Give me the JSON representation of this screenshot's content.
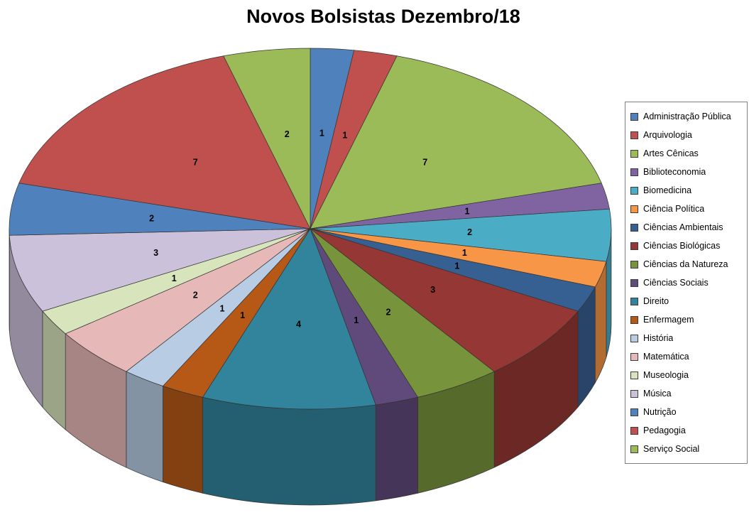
{
  "title": "Novos Bolsistas Dezembro/18",
  "chart_data": {
    "type": "pie",
    "style": "3d",
    "title": "Novos Bolsistas Dezembro/18",
    "legend_position": "right",
    "data_labels": "values",
    "start_angle_deg": 0,
    "direction": "clockwise",
    "total": 43,
    "categories": [
      "Administração Pública",
      "Arquivologia",
      "Artes Cênicas",
      "Biblioteconomia",
      "Biomedicina",
      "Ciência Política",
      "Ciências Ambientais",
      "Ciências Biológicas",
      "Ciências da Natureza",
      "Ciências Sociais",
      "Direito",
      "Enfermagem",
      "História",
      "Matemática",
      "Museologia",
      "Música",
      "Nutrição",
      "Pedagogia",
      "Serviço Social"
    ],
    "values": [
      1,
      1,
      7,
      1,
      2,
      1,
      1,
      3,
      2,
      1,
      4,
      1,
      1,
      2,
      1,
      3,
      2,
      7,
      2
    ],
    "colors": [
      "#4F81BD",
      "#C0504D",
      "#9BBB59",
      "#8064A2",
      "#4BACC6",
      "#F79646",
      "#376092",
      "#953734",
      "#77933C",
      "#604A7B",
      "#31849B",
      "#B65917",
      "#B8CCE4",
      "#E6B9B8",
      "#D7E4BC",
      "#CCC1DA",
      "#4F81BD",
      "#C0504D",
      "#9BBB59"
    ],
    "background": "#FFFFFF"
  }
}
